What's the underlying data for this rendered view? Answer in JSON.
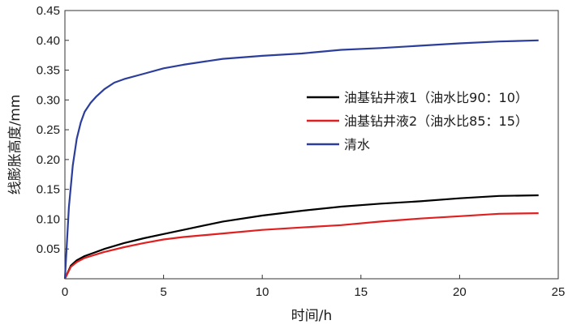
{
  "chart_data": {
    "type": "line",
    "xlabel": "时间/h",
    "ylabel": "线膨胀高度/mm",
    "xlim": [
      0,
      25
    ],
    "ylim": [
      0,
      0.45
    ],
    "xticks": [
      0,
      5,
      10,
      15,
      20,
      25
    ],
    "yticks": [
      0.05,
      0.1,
      0.15,
      0.2,
      0.25,
      0.3,
      0.35,
      0.4,
      0.45
    ],
    "ytick_labels": [
      "0.05",
      "0.10",
      "0.15",
      "0.20",
      "0.25",
      "0.30",
      "0.35",
      "0.40",
      "0.45"
    ],
    "grid": false,
    "legend_position": "center-right",
    "series": [
      {
        "name": "油基钻井液1（油水比90：10）",
        "color": "#000000",
        "x": [
          0,
          0.3,
          0.6,
          1,
          1.5,
          2,
          3,
          4,
          5,
          6,
          8,
          10,
          12,
          14,
          16,
          18,
          20,
          22,
          24
        ],
        "y": [
          0,
          0.022,
          0.031,
          0.038,
          0.044,
          0.05,
          0.06,
          0.068,
          0.075,
          0.082,
          0.096,
          0.106,
          0.114,
          0.121,
          0.126,
          0.13,
          0.135,
          0.139,
          0.14
        ]
      },
      {
        "name": "油基钻井液2（油水比85：15）",
        "color": "#e02020",
        "x": [
          0,
          0.3,
          0.6,
          1,
          1.5,
          2,
          3,
          4,
          5,
          6,
          8,
          10,
          12,
          14,
          16,
          18,
          20,
          22,
          24
        ],
        "y": [
          0,
          0.02,
          0.028,
          0.035,
          0.04,
          0.045,
          0.053,
          0.06,
          0.066,
          0.07,
          0.076,
          0.082,
          0.086,
          0.09,
          0.096,
          0.101,
          0.105,
          0.109,
          0.11
        ]
      },
      {
        "name": "清水",
        "color": "#2c3e9c",
        "x": [
          0,
          0.2,
          0.4,
          0.6,
          0.8,
          1,
          1.3,
          1.6,
          2,
          2.5,
          3,
          4,
          5,
          6,
          8,
          10,
          12,
          14,
          16,
          18,
          20,
          22,
          24
        ],
        "y": [
          0,
          0.12,
          0.19,
          0.235,
          0.262,
          0.28,
          0.295,
          0.306,
          0.318,
          0.329,
          0.335,
          0.344,
          0.353,
          0.359,
          0.369,
          0.374,
          0.378,
          0.384,
          0.387,
          0.391,
          0.395,
          0.398,
          0.4
        ]
      }
    ]
  }
}
